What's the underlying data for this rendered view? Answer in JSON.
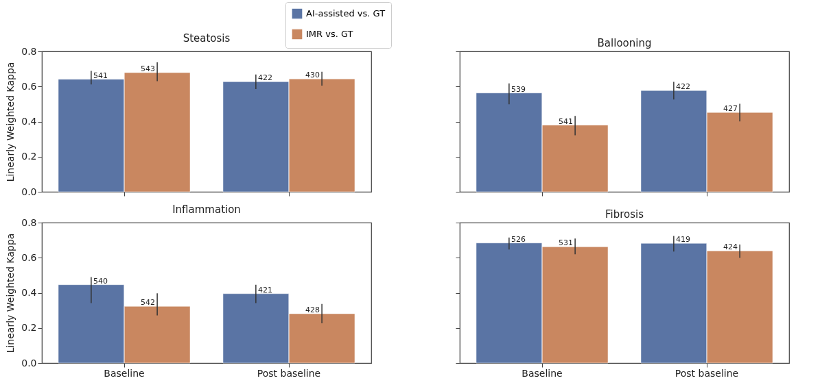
{
  "chart_data": [
    {
      "type": "bar",
      "title": "Steatosis",
      "ylabel": "Linearly Weighted Kappa",
      "categories": [
        "Baseline",
        "Post baseline"
      ],
      "ylim": [
        0,
        0.8
      ],
      "yticks": [
        {
          "value": 0,
          "label": "0.0"
        },
        {
          "value": 0.2,
          "label": "0.2"
        },
        {
          "value": 0.4,
          "label": "0.4"
        },
        {
          "value": 0.6,
          "label": "0.6"
        },
        {
          "value": 0.8,
          "label": "0.8"
        }
      ],
      "tick_labels": "y",
      "legend": "top",
      "series": [
        {
          "name": "AI-assisted vs. GT",
          "color": "#5a74a4",
          "values": [
            0.641,
            0.627
          ],
          "errors": [
            [
              0.612,
              0.689
            ],
            [
              0.585,
              0.668
            ]
          ]
        },
        {
          "name": "IMR vs. GT",
          "color": "#c98760",
          "values": [
            0.679,
            0.643
          ],
          "errors": [
            [
              0.63,
              0.738
            ],
            [
              0.605,
              0.684
            ]
          ]
        }
      ],
      "annotations": [
        {
          "text": "541",
          "x": "Baseline",
          "y": 0.641
        },
        {
          "text": "422",
          "x": "Post baseline",
          "y": 0.627
        },
        {
          "text": "543",
          "x": "Baseline",
          "y": 0.679
        },
        {
          "text": "430",
          "x": "Post baseline",
          "y": 0.643
        }
      ]
    },
    {
      "type": "bar",
      "title": "Ballooning",
      "categories": [
        "Baseline",
        "Post baseline"
      ],
      "ylim": [
        0,
        0.8
      ],
      "yticks": [
        {
          "value": 0,
          "label": "0.0"
        },
        {
          "value": 0.2,
          "label": "0.2"
        },
        {
          "value": 0.4,
          "label": "0.4"
        },
        {
          "value": 0.6,
          "label": "0.6"
        },
        {
          "value": 0.8,
          "label": "0.8"
        }
      ],
      "tick_labels": false,
      "series": [
        {
          "color": "#5a74a4",
          "values": [
            0.563,
            0.577
          ],
          "errors": [
            [
              0.499,
              0.618
            ],
            [
              0.526,
              0.626
            ]
          ]
        },
        {
          "color": "#c98760",
          "values": [
            0.38,
            0.452
          ],
          "errors": [
            [
              0.322,
              0.432
            ],
            [
              0.401,
              0.501
            ]
          ]
        }
      ],
      "annotations": [
        {
          "text": "539",
          "x": "Baseline",
          "y": 0.563
        },
        {
          "text": "422",
          "x": "Post baseline",
          "y": 0.577
        },
        {
          "text": "541",
          "x": "Baseline",
          "y": 0.38
        },
        {
          "text": "427",
          "x": "Post baseline",
          "y": 0.452
        }
      ]
    },
    {
      "type": "bar",
      "title": "Inflammation",
      "ylabel": "Linearly Weighted Kappa",
      "categories": [
        "Baseline",
        "Post baseline"
      ],
      "ylim": [
        0,
        0.8
      ],
      "yticks": [
        {
          "value": 0,
          "label": "0.0"
        },
        {
          "value": 0.2,
          "label": "0.2"
        },
        {
          "value": 0.4,
          "label": "0.4"
        },
        {
          "value": 0.6,
          "label": "0.6"
        },
        {
          "value": 0.8,
          "label": "0.8"
        }
      ],
      "series": [
        {
          "color": "#5a74a4",
          "values": [
            0.446,
            0.395
          ],
          "errors": [
            [
              0.341,
              0.49
            ],
            [
              0.341,
              0.446
            ]
          ]
        },
        {
          "color": "#c98760",
          "values": [
            0.323,
            0.281
          ],
          "errors": [
            [
              0.271,
              0.397
            ],
            [
              0.226,
              0.337
            ]
          ]
        }
      ],
      "annotations": [
        {
          "text": "540",
          "x": "Baseline",
          "y": 0.446
        },
        {
          "text": "421",
          "x": "Post baseline",
          "y": 0.395
        },
        {
          "text": "542",
          "x": "Baseline",
          "y": 0.323
        },
        {
          "text": "428",
          "x": "Post baseline",
          "y": 0.281
        }
      ]
    },
    {
      "type": "bar",
      "title": "Fibrosis",
      "categories": [
        "Baseline",
        "Post baseline"
      ],
      "ylim": [
        0,
        0.8
      ],
      "yticks": [
        {
          "value": 0,
          "label": "0.0"
        },
        {
          "value": 0.2,
          "label": "0.2"
        },
        {
          "value": 0.4,
          "label": "0.4"
        },
        {
          "value": 0.6,
          "label": "0.6"
        },
        {
          "value": 0.8,
          "label": "0.8"
        }
      ],
      "tick_labels": "x",
      "series": [
        {
          "color": "#5a74a4",
          "values": [
            0.684,
            0.682
          ],
          "errors": [
            [
              0.647,
              0.715
            ],
            [
              0.635,
              0.724
            ]
          ]
        },
        {
          "color": "#c98760",
          "values": [
            0.662,
            0.639
          ],
          "errors": [
            [
              0.62,
              0.709
            ],
            [
              0.599,
              0.675
            ]
          ]
        }
      ],
      "annotations": [
        {
          "text": "526",
          "x": "Baseline",
          "y": 0.684
        },
        {
          "text": "419",
          "x": "Post baseline",
          "y": 0.682
        },
        {
          "text": "531",
          "x": "Baseline",
          "y": 0.662
        },
        {
          "text": "424",
          "x": "Post baseline",
          "y": 0.639
        }
      ]
    }
  ]
}
